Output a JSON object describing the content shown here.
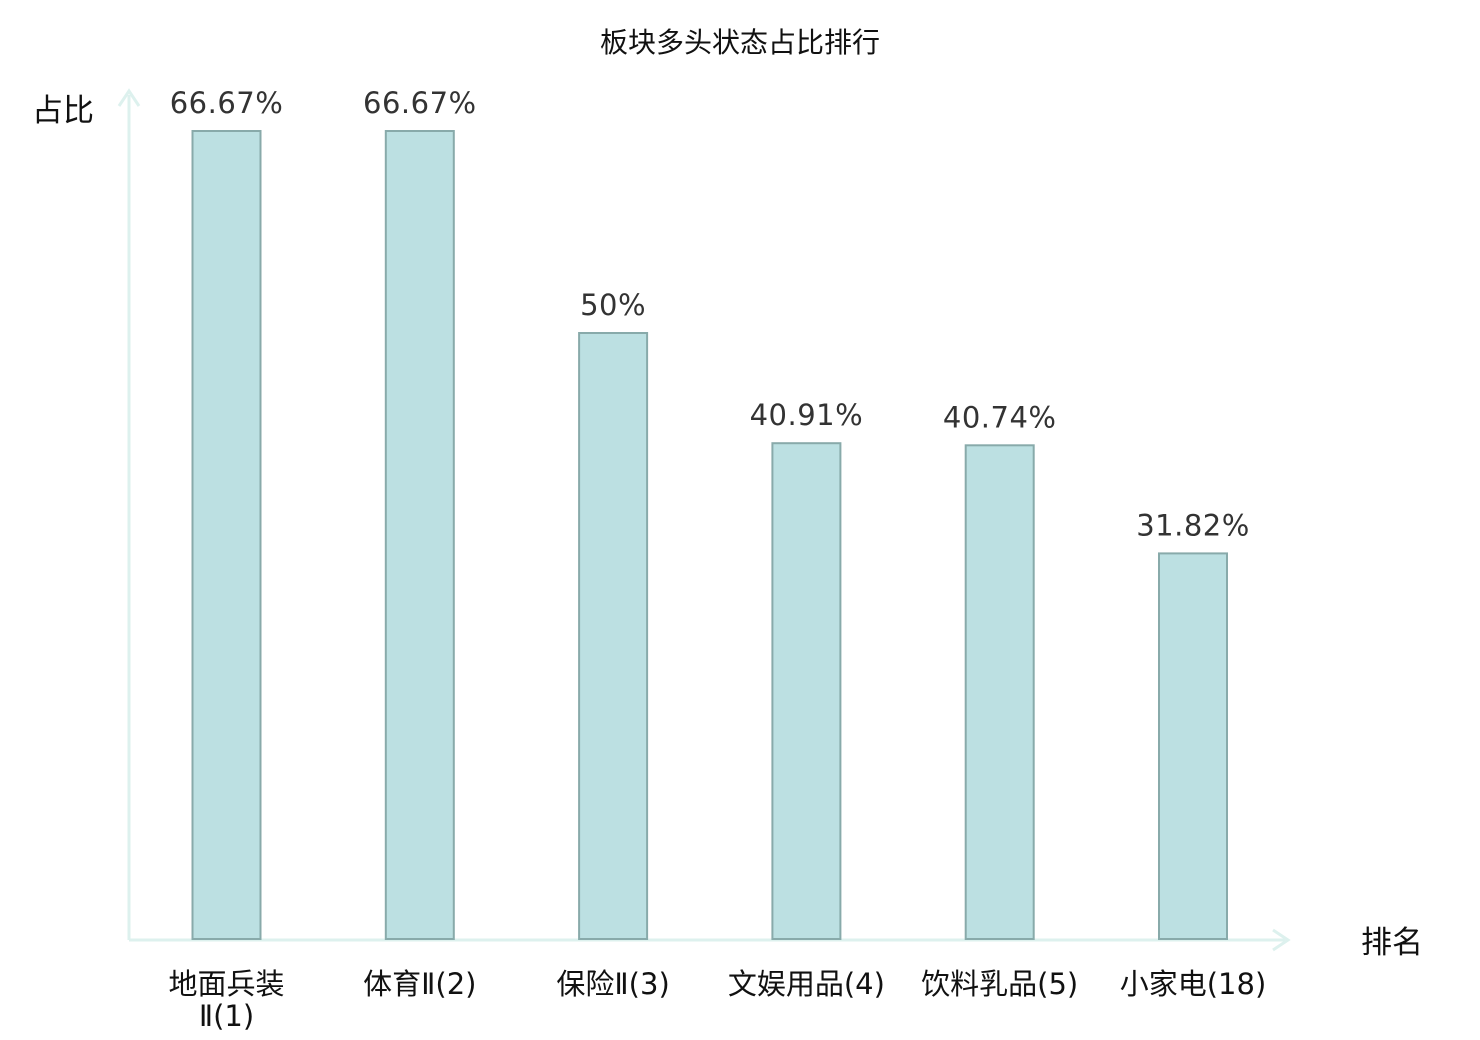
{
  "chart_data": {
    "type": "bar",
    "title": "板块多头状态占比排行",
    "xlabel": "排名",
    "ylabel": "占比",
    "categories": [
      [
        "地面兵装",
        "Ⅱ(1)"
      ],
      [
        "体育Ⅱ(2)"
      ],
      [
        "保险Ⅱ(3)"
      ],
      [
        "文娱用品(4)"
      ],
      [
        "饮料乳品(5)"
      ],
      [
        "小家电(18)"
      ]
    ],
    "values": [
      66.67,
      66.67,
      50,
      40.91,
      40.74,
      31.82
    ],
    "value_labels": [
      "66.67%",
      "66.67%",
      "50%",
      "40.91%",
      "40.74%",
      "31.82%"
    ],
    "highlight_index": 5,
    "ylim": [
      0,
      70
    ],
    "grid": false,
    "colors": {
      "bar_fill": "#bce0e2",
      "bar_stroke": "#88aaaa",
      "axis": "#ddf1ee",
      "highlight_label": "#dd2222",
      "text": "#111111"
    }
  }
}
